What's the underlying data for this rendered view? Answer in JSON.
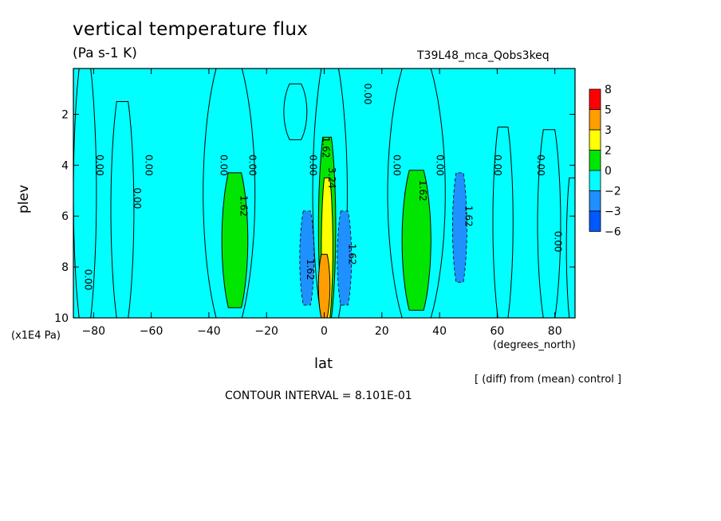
{
  "chart_data": {
    "type": "heatmap",
    "title": "vertical temperature flux",
    "units": "(Pa s-1 K)",
    "run_label": "T39L48_mca_Qobs3keq",
    "xlabel": "lat",
    "ylabel": "plev",
    "x_units": "(degrees_north)",
    "y_units": "(x1E4 Pa)",
    "xlim": [
      -87,
      87
    ],
    "ylim": [
      10,
      0.2
    ],
    "x_ticks": [
      -80,
      -60,
      -40,
      -20,
      0,
      20,
      40,
      60,
      80
    ],
    "x_tick_labels": [
      "−80",
      "−60",
      "−40",
      "−20",
      "0",
      "20",
      "40",
      "60",
      "80"
    ],
    "y_ticks": [
      2,
      4,
      6,
      8,
      10
    ],
    "y_tick_labels": [
      "2",
      "4",
      "6",
      "8",
      "10"
    ],
    "grid": false,
    "legend_position": "right",
    "contour_interval_text": "CONTOUR INTERVAL = 8.101E-01",
    "diff_note": "[ (diff) from (mean) control ]",
    "color_levels": [
      {
        "label": "8",
        "color": "#ff0000"
      },
      {
        "label": "5",
        "color": "#ff9e00"
      },
      {
        "label": "3",
        "color": "#ffff00"
      },
      {
        "label": "2",
        "color": "#00e600"
      },
      {
        "label": "0",
        "color": "#00ffff"
      },
      {
        "label": "−2",
        "color": "#1e90ff"
      },
      {
        "label": "−3",
        "color": "#0058ff"
      },
      {
        "label": "−6",
        "color": ""
      }
    ],
    "background_color": "#00ffff",
    "features": [
      {
        "lat_center": -83,
        "lat_half": 4,
        "p_top": 0.2,
        "p_bot": 10,
        "level": "0"
      },
      {
        "lat_center": -70,
        "lat_half": 4,
        "p_top": 1.5,
        "p_bot": 10,
        "level": "0"
      },
      {
        "lat_center": -33,
        "lat_half": 9,
        "p_top": 0.2,
        "p_bot": 10,
        "level": "0"
      },
      {
        "lat_center": -31,
        "lat_half": 4.5,
        "p_top": 4.3,
        "p_bot": 9.6,
        "level": "2"
      },
      {
        "lat_center": -10,
        "lat_half": 4,
        "p_top": 0.8,
        "p_bot": 3.0,
        "level": "0"
      },
      {
        "lat_center": 2,
        "lat_half": 6,
        "p_top": 0.2,
        "p_bot": 10,
        "level": "0"
      },
      {
        "lat_center": 1,
        "lat_half": 3,
        "p_top": 2.9,
        "p_bot": 10,
        "level": "2"
      },
      {
        "lat_center": 1,
        "lat_half": 2,
        "p_top": 4.5,
        "p_bot": 10,
        "level": "3"
      },
      {
        "lat_center": 0,
        "lat_half": 2,
        "p_top": 7.5,
        "p_bot": 10,
        "level": "5"
      },
      {
        "lat_center": 32,
        "lat_half": 10,
        "p_top": 0.2,
        "p_bot": 10,
        "level": "0"
      },
      {
        "lat_center": 32,
        "lat_half": 5,
        "p_top": 4.2,
        "p_bot": 9.7,
        "level": "2"
      },
      {
        "lat_center": 62,
        "lat_half": 3.5,
        "p_top": 2.5,
        "p_bot": 10,
        "level": "0"
      },
      {
        "lat_center": 78,
        "lat_half": 4,
        "p_top": 2.6,
        "p_bot": 10,
        "level": "0"
      },
      {
        "lat_center": 86,
        "lat_half": 2,
        "p_top": 4.5,
        "p_bot": 10,
        "level": "0"
      },
      {
        "lat_center": -6,
        "lat_half": 2.5,
        "p_top": 5.8,
        "p_bot": 9.5,
        "level": "−2"
      },
      {
        "lat_center": 7,
        "lat_half": 2.5,
        "p_top": 5.8,
        "p_bot": 9.5,
        "level": "−2"
      },
      {
        "lat_center": 47,
        "lat_half": 2.5,
        "p_top": 4.3,
        "p_bot": 8.6,
        "level": "−2"
      }
    ],
    "contour_labels": [
      {
        "text": "0.00",
        "lat": -79,
        "p": 4.0
      },
      {
        "text": "0.00",
        "lat": -62,
        "p": 4.0
      },
      {
        "text": "0.00",
        "lat": -66,
        "p": 5.3
      },
      {
        "text": "0.00",
        "lat": -36,
        "p": 4.0
      },
      {
        "text": "0.00",
        "lat": -26,
        "p": 4.0
      },
      {
        "text": "1.62",
        "lat": -29,
        "p": 5.6
      },
      {
        "text": "0.00",
        "lat": -5,
        "p": 4.0
      },
      {
        "text": "1.62",
        "lat": -0.5,
        "p": 3.3
      },
      {
        "text": "3.24",
        "lat": 1.5,
        "p": 4.5
      },
      {
        "text": "0.00",
        "lat": 14,
        "p": 1.2
      },
      {
        "text": "1.62",
        "lat": 8.5,
        "p": 7.5
      },
      {
        "text": "1.62",
        "lat": -6,
        "p": 8.1
      },
      {
        "text": "0.00",
        "lat": 24,
        "p": 4.0
      },
      {
        "text": "1.62",
        "lat": 33,
        "p": 5.0
      },
      {
        "text": "0.00",
        "lat": 39,
        "p": 4.0
      },
      {
        "text": "1.62",
        "lat": 49,
        "p": 6.0
      },
      {
        "text": "0.00",
        "lat": 59,
        "p": 4.0
      },
      {
        "text": "0.00",
        "lat": 74,
        "p": 4.0
      },
      {
        "text": "0.00",
        "lat": 80,
        "p": 7.0
      },
      {
        "text": "0.00",
        "lat": -83,
        "p": 8.5
      }
    ]
  }
}
